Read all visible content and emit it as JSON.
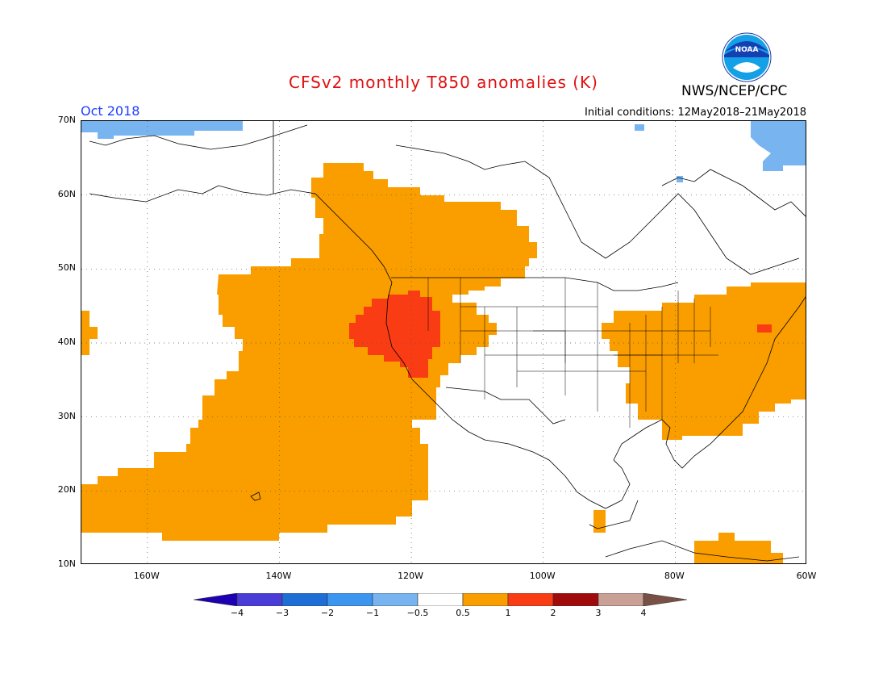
{
  "title": "CFSv2 monthly T850 anomalies (K)",
  "valid_month": "Oct 2018",
  "initial_conditions": "Initial conditions: 12May2018–21May2018",
  "agency": "NWS/NCEP/CPC",
  "logo_text": "NOAA",
  "lat_labels": [
    "70N",
    "60N",
    "50N",
    "40N",
    "30N",
    "20N",
    "10N"
  ],
  "lat_values": [
    70,
    60,
    50,
    40,
    30,
    20,
    10
  ],
  "lon_labels": [
    "160W",
    "140W",
    "120W",
    "100W",
    "80W",
    "60W"
  ],
  "lon_values": [
    -160,
    -140,
    -120,
    -100,
    -80,
    -60
  ],
  "map_extent": {
    "lon_min": -170,
    "lon_max": -60,
    "lat_min": 10,
    "lat_max": 70
  },
  "colorbar": {
    "labels": [
      "-4",
      "-3",
      "-2",
      "-1",
      "-0.5",
      "0.5",
      "1",
      "2",
      "3",
      "4"
    ],
    "colors": [
      "#1e00b4",
      "#4a3cd6",
      "#1e6ed6",
      "#3c96f0",
      "#78b4f0",
      "#ffffff",
      "#fa9e00",
      "#fa3c14",
      "#a00a0a",
      "#c8a096",
      "#785046"
    ]
  },
  "colors": {
    "orange": "#fa9e00",
    "red": "#fa3c14",
    "lightblue": "#78b4f0"
  }
}
